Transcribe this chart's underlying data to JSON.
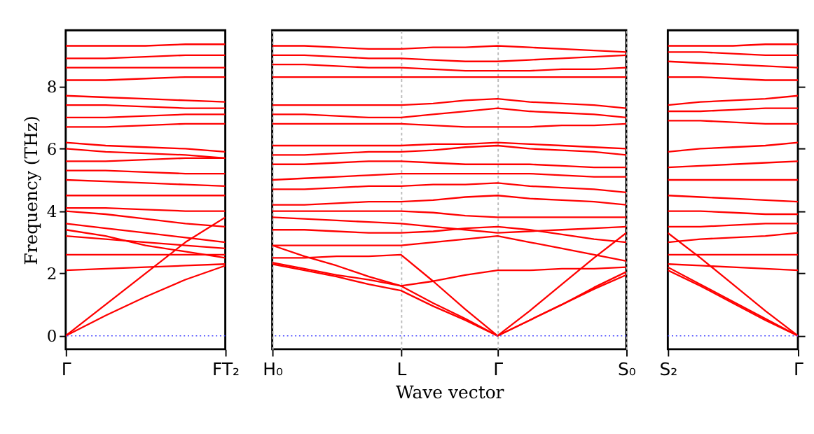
{
  "chart_data": [
    {
      "type": "line",
      "ylabel": "Frequency (THz)",
      "categories": [
        "Γ",
        null,
        null,
        null,
        "FT₂"
      ],
      "ylim": [
        -0.43,
        9.8
      ],
      "yticks": [
        0,
        2,
        4,
        6,
        8
      ],
      "grid": false,
      "legend": false,
      "marker": "none",
      "line_style": "solid",
      "ref_lines": [
        {
          "axis": "y",
          "value": 0,
          "color": "#4444ff",
          "line_style": "dotted"
        }
      ],
      "series": [
        {
          "color": "#ff0000",
          "values": [
            0,
            0.65,
            1.25,
            1.8,
            2.25
          ]
        },
        {
          "color": "#ff0000",
          "values": [
            0,
            1.0,
            2.0,
            3.0,
            3.8
          ]
        },
        {
          "color": "#ff0000",
          "values": [
            2.1,
            2.15,
            2.2,
            2.25,
            2.3
          ]
        },
        {
          "color": "#ff0000",
          "values": [
            2.6,
            2.6,
            2.6,
            2.6,
            2.6
          ]
        },
        {
          "color": "#ff0000",
          "values": [
            3.2,
            3.1,
            3.0,
            2.9,
            2.8
          ]
        },
        {
          "color": "#ff0000",
          "values": [
            3.4,
            3.2,
            2.9,
            2.7,
            2.5
          ]
        },
        {
          "color": "#ff0000",
          "values": [
            3.6,
            3.45,
            3.3,
            3.15,
            3.0
          ]
        },
        {
          "color": "#ff0000",
          "values": [
            4.0,
            3.9,
            3.75,
            3.6,
            3.5
          ]
        },
        {
          "color": "#ff0000",
          "values": [
            4.1,
            4.1,
            4.05,
            4.0,
            4.0
          ]
        },
        {
          "color": "#ff0000",
          "values": [
            4.5,
            4.5,
            4.5,
            4.5,
            4.5
          ]
        },
        {
          "color": "#ff0000",
          "values": [
            5.0,
            4.95,
            4.9,
            4.85,
            4.8
          ]
        },
        {
          "color": "#ff0000",
          "values": [
            5.3,
            5.3,
            5.25,
            5.2,
            5.2
          ]
        },
        {
          "color": "#ff0000",
          "values": [
            5.6,
            5.6,
            5.65,
            5.7,
            5.7
          ]
        },
        {
          "color": "#ff0000",
          "values": [
            6.0,
            5.9,
            5.85,
            5.8,
            5.7
          ]
        },
        {
          "color": "#ff0000",
          "values": [
            6.2,
            6.1,
            6.05,
            6.0,
            5.9
          ]
        },
        {
          "color": "#ff0000",
          "values": [
            6.7,
            6.7,
            6.75,
            6.8,
            6.8
          ]
        },
        {
          "color": "#ff0000",
          "values": [
            7.0,
            7.0,
            7.05,
            7.1,
            7.1
          ]
        },
        {
          "color": "#ff0000",
          "values": [
            7.4,
            7.4,
            7.35,
            7.3,
            7.3
          ]
        },
        {
          "color": "#ff0000",
          "values": [
            7.7,
            7.65,
            7.6,
            7.55,
            7.5
          ]
        },
        {
          "color": "#ff0000",
          "values": [
            8.2,
            8.2,
            8.25,
            8.3,
            8.3
          ]
        },
        {
          "color": "#ff0000",
          "values": [
            8.6,
            8.6,
            8.6,
            8.6,
            8.6
          ]
        },
        {
          "color": "#ff0000",
          "values": [
            8.9,
            8.9,
            8.95,
            9.0,
            9.0
          ]
        },
        {
          "color": "#ff0000",
          "values": [
            9.3,
            9.3,
            9.3,
            9.35,
            9.35
          ]
        }
      ]
    },
    {
      "type": "line",
      "xlabel": "Wave vector",
      "categories": [
        "H₀",
        null,
        null,
        null,
        "L",
        null,
        null,
        "Γ",
        null,
        null,
        null,
        "S₀"
      ],
      "ylim": [
        -0.43,
        9.8
      ],
      "tick_labels": "x",
      "grid": "x",
      "legend": false,
      "marker": "none",
      "line_style": "solid",
      "ref_lines": [
        {
          "axis": "y",
          "value": 0,
          "color": "#4444ff",
          "line_style": "dotted"
        }
      ],
      "series": [
        {
          "color": "#ff0000",
          "values": [
            2.3,
            2.1,
            1.9,
            1.65,
            1.45,
            0.95,
            0.5,
            0,
            0.5,
            1.0,
            1.5,
            1.95
          ]
        },
        {
          "color": "#ff0000",
          "values": [
            2.35,
            2.15,
            1.95,
            1.8,
            1.6,
            1.05,
            0.55,
            0,
            0.5,
            1.0,
            1.55,
            2.05
          ]
        },
        {
          "color": "#ff0000",
          "values": [
            2.5,
            2.5,
            2.55,
            2.55,
            2.6,
            1.75,
            0.85,
            0,
            0.8,
            1.65,
            2.5,
            3.3
          ]
        },
        {
          "color": "#ff0000",
          "values": [
            2.9,
            2.55,
            2.25,
            1.9,
            1.6,
            1.75,
            1.95,
            2.1,
            2.1,
            2.15,
            2.15,
            2.2
          ]
        },
        {
          "color": "#ff0000",
          "values": [
            2.9,
            2.9,
            2.9,
            2.9,
            2.9,
            3.0,
            3.1,
            3.2,
            3.0,
            2.8,
            2.6,
            2.4
          ]
        },
        {
          "color": "#ff0000",
          "values": [
            3.4,
            3.4,
            3.35,
            3.3,
            3.3,
            3.35,
            3.45,
            3.5,
            3.4,
            3.25,
            3.1,
            3.0
          ]
        },
        {
          "color": "#ff0000",
          "values": [
            3.8,
            3.75,
            3.7,
            3.65,
            3.6,
            3.5,
            3.4,
            3.3,
            3.35,
            3.4,
            3.45,
            3.5
          ]
        },
        {
          "color": "#ff0000",
          "values": [
            4.0,
            4.0,
            4.0,
            4.0,
            4.0,
            3.95,
            3.85,
            3.8,
            3.8,
            3.8,
            3.8,
            3.8
          ]
        },
        {
          "color": "#ff0000",
          "values": [
            4.2,
            4.2,
            4.25,
            4.3,
            4.3,
            4.35,
            4.45,
            4.5,
            4.4,
            4.35,
            4.3,
            4.2
          ]
        },
        {
          "color": "#ff0000",
          "values": [
            4.7,
            4.7,
            4.75,
            4.8,
            4.8,
            4.85,
            4.85,
            4.9,
            4.8,
            4.75,
            4.7,
            4.6
          ]
        },
        {
          "color": "#ff0000",
          "values": [
            5.0,
            5.05,
            5.1,
            5.15,
            5.2,
            5.2,
            5.2,
            5.2,
            5.2,
            5.15,
            5.1,
            5.1
          ]
        },
        {
          "color": "#ff0000",
          "values": [
            5.5,
            5.5,
            5.55,
            5.6,
            5.6,
            5.55,
            5.5,
            5.5,
            5.5,
            5.45,
            5.4,
            5.4
          ]
        },
        {
          "color": "#ff0000",
          "values": [
            5.8,
            5.8,
            5.85,
            5.9,
            5.9,
            5.95,
            6.05,
            6.1,
            6.0,
            5.95,
            5.9,
            5.8
          ]
        },
        {
          "color": "#ff0000",
          "values": [
            6.1,
            6.1,
            6.1,
            6.1,
            6.1,
            6.15,
            6.15,
            6.2,
            6.15,
            6.1,
            6.05,
            6.0
          ]
        },
        {
          "color": "#ff0000",
          "values": [
            6.8,
            6.8,
            6.8,
            6.8,
            6.8,
            6.75,
            6.7,
            6.7,
            6.7,
            6.75,
            6.75,
            6.8
          ]
        },
        {
          "color": "#ff0000",
          "values": [
            7.1,
            7.1,
            7.05,
            7.0,
            7.0,
            7.1,
            7.2,
            7.3,
            7.2,
            7.15,
            7.1,
            7.0
          ]
        },
        {
          "color": "#ff0000",
          "values": [
            7.4,
            7.4,
            7.4,
            7.4,
            7.4,
            7.45,
            7.55,
            7.6,
            7.5,
            7.45,
            7.4,
            7.3
          ]
        },
        {
          "color": "#ff0000",
          "values": [
            8.3,
            8.3,
            8.3,
            8.3,
            8.3,
            8.3,
            8.3,
            8.3,
            8.3,
            8.3,
            8.3,
            8.3
          ]
        },
        {
          "color": "#ff0000",
          "values": [
            8.7,
            8.7,
            8.65,
            8.6,
            8.6,
            8.55,
            8.5,
            8.5,
            8.5,
            8.55,
            8.55,
            8.6
          ]
        },
        {
          "color": "#ff0000",
          "values": [
            9.0,
            9.0,
            8.95,
            8.9,
            8.9,
            8.85,
            8.8,
            8.8,
            8.85,
            8.9,
            8.95,
            9.0
          ]
        },
        {
          "color": "#ff0000",
          "values": [
            9.3,
            9.3,
            9.25,
            9.2,
            9.2,
            9.25,
            9.25,
            9.3,
            9.25,
            9.2,
            9.15,
            9.1
          ]
        }
      ]
    },
    {
      "type": "line",
      "categories": [
        "S₂",
        null,
        null,
        null,
        "Γ"
      ],
      "ylim": [
        -0.43,
        9.8
      ],
      "tick_labels": "x",
      "grid": false,
      "legend": false,
      "marker": "none",
      "line_style": "solid",
      "ref_lines": [
        {
          "axis": "y",
          "value": 0,
          "color": "#4444ff",
          "line_style": "dotted"
        }
      ],
      "series": [
        {
          "color": "#ff0000",
          "values": [
            2.1,
            1.6,
            1.05,
            0.5,
            0
          ]
        },
        {
          "color": "#ff0000",
          "values": [
            2.2,
            1.65,
            1.1,
            0.55,
            0
          ]
        },
        {
          "color": "#ff0000",
          "values": [
            3.3,
            2.5,
            1.65,
            0.8,
            0
          ]
        },
        {
          "color": "#ff0000",
          "values": [
            2.3,
            2.25,
            2.2,
            2.15,
            2.1
          ]
        },
        {
          "color": "#ff0000",
          "values": [
            2.6,
            2.6,
            2.6,
            2.6,
            2.6
          ]
        },
        {
          "color": "#ff0000",
          "values": [
            3.0,
            3.1,
            3.15,
            3.2,
            3.3
          ]
        },
        {
          "color": "#ff0000",
          "values": [
            3.5,
            3.5,
            3.55,
            3.6,
            3.6
          ]
        },
        {
          "color": "#ff0000",
          "values": [
            4.0,
            4.0,
            3.95,
            3.9,
            3.9
          ]
        },
        {
          "color": "#ff0000",
          "values": [
            4.5,
            4.45,
            4.4,
            4.35,
            4.3
          ]
        },
        {
          "color": "#ff0000",
          "values": [
            5.0,
            5.0,
            5.0,
            5.0,
            5.0
          ]
        },
        {
          "color": "#ff0000",
          "values": [
            5.4,
            5.45,
            5.5,
            5.55,
            5.6
          ]
        },
        {
          "color": "#ff0000",
          "values": [
            5.9,
            6.0,
            6.05,
            6.1,
            6.2
          ]
        },
        {
          "color": "#ff0000",
          "values": [
            6.9,
            6.9,
            6.85,
            6.8,
            6.8
          ]
        },
        {
          "color": "#ff0000",
          "values": [
            7.2,
            7.2,
            7.25,
            7.3,
            7.3
          ]
        },
        {
          "color": "#ff0000",
          "values": [
            7.4,
            7.5,
            7.55,
            7.6,
            7.7
          ]
        },
        {
          "color": "#ff0000",
          "values": [
            8.3,
            8.3,
            8.25,
            8.2,
            8.2
          ]
        },
        {
          "color": "#ff0000",
          "values": [
            8.8,
            8.75,
            8.7,
            8.65,
            8.6
          ]
        },
        {
          "color": "#ff0000",
          "values": [
            9.1,
            9.1,
            9.05,
            9.0,
            9.0
          ]
        },
        {
          "color": "#ff0000",
          "values": [
            9.3,
            9.3,
            9.3,
            9.35,
            9.35
          ]
        }
      ]
    }
  ]
}
